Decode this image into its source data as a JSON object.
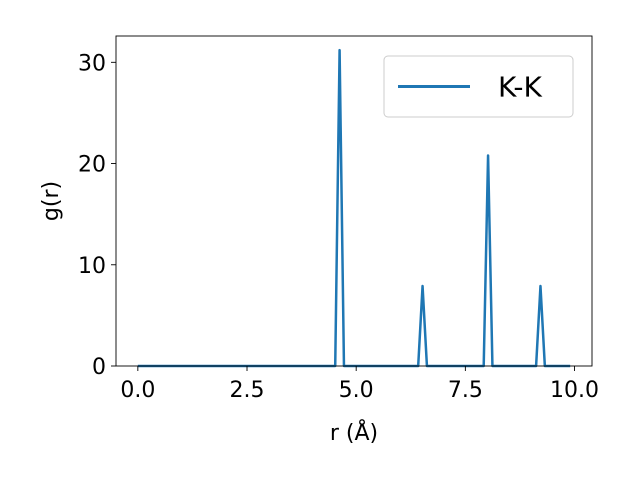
{
  "chart_data": {
    "type": "line",
    "title": "",
    "xlabel": "r (Å)",
    "ylabel": "g(r)",
    "xlim": [
      -0.5,
      10.4
    ],
    "ylim": [
      0,
      32.6
    ],
    "xticks": [
      0.0,
      2.5,
      5.0,
      7.5,
      10.0
    ],
    "xtick_labels": [
      "0.0",
      "2.5",
      "5.0",
      "7.5",
      "10.0"
    ],
    "yticks": [
      0,
      10,
      20,
      30
    ],
    "ytick_labels": [
      "0",
      "10",
      "20",
      "30"
    ],
    "grid": false,
    "legend": {
      "position": "top-right",
      "entries": [
        "K-K"
      ]
    },
    "series": [
      {
        "name": "K-K",
        "color": "#1f77b4",
        "x": [
          0.0,
          4.52,
          4.62,
          4.72,
          6.42,
          6.52,
          6.62,
          7.92,
          8.02,
          8.12,
          9.12,
          9.22,
          9.32,
          9.9
        ],
        "y": [
          0,
          0,
          31.2,
          0,
          0,
          7.9,
          0,
          0,
          20.8,
          0,
          0,
          7.9,
          0,
          0
        ]
      }
    ]
  }
}
